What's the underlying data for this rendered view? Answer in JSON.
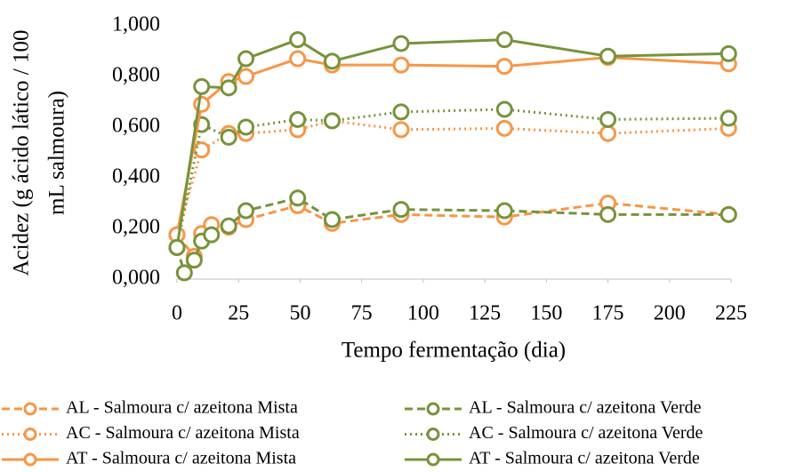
{
  "chart_data": {
    "type": "line",
    "xlabel": "Tempo fermentação (dia)",
    "ylabel": [
      "Acidez  (g ácido lático / 100",
      "mL salmoura)"
    ],
    "xlim": [
      0,
      225
    ],
    "xticks": [
      0,
      25,
      50,
      75,
      100,
      125,
      150,
      175,
      200,
      225
    ],
    "ylim": [
      0,
      1
    ],
    "yticks": [
      {
        "value": 0,
        "label": "0,000"
      },
      {
        "value": 0.2,
        "label": "0,200"
      },
      {
        "value": 0.4,
        "label": "0,400"
      },
      {
        "value": 0.6,
        "label": "0,600"
      },
      {
        "value": 0.8,
        "label": "0,800"
      },
      {
        "value": 1,
        "label": "1,000"
      }
    ],
    "legend": "bottom",
    "series": [
      {
        "name": "AL - Salmoura c/ azeitona Mista",
        "color": "#f79646",
        "line_style": "dashed",
        "x": [
          0,
          7,
          10,
          14,
          21,
          28,
          49,
          63,
          91,
          133,
          175,
          224
        ],
        "values": [
          0.175,
          0.09,
          0.18,
          0.215,
          0.205,
          0.235,
          0.29,
          0.22,
          0.255,
          0.245,
          0.3,
          0.255
        ]
      },
      {
        "name": "AL - Salmoura c/ azeitona Verde",
        "color": "#77933c",
        "line_style": "dashed",
        "x": [
          0,
          3,
          7,
          10,
          14,
          21,
          28,
          49,
          63,
          91,
          133,
          175,
          224
        ],
        "values": [
          0.125,
          0.025,
          0.075,
          0.15,
          0.175,
          0.21,
          0.27,
          0.32,
          0.235,
          0.275,
          0.27,
          0.255,
          0.255
        ]
      },
      {
        "name": "AC - Salmoura c/ azeitona Mista",
        "color": "#f79646",
        "line_style": "dotted",
        "x": [
          0,
          10,
          21,
          28,
          49,
          63,
          91,
          133,
          175,
          224
        ],
        "values": [
          0.175,
          0.51,
          0.575,
          0.575,
          0.59,
          0.625,
          0.59,
          0.595,
          0.575,
          0.595
        ]
      },
      {
        "name": "AC - Salmoura c/ azeitona Verde",
        "color": "#77933c",
        "line_style": "dotted",
        "x": [
          0,
          10,
          21,
          28,
          49,
          63,
          91,
          133,
          175,
          224
        ],
        "values": [
          0.125,
          0.61,
          0.56,
          0.6,
          0.63,
          0.625,
          0.66,
          0.67,
          0.63,
          0.635
        ]
      },
      {
        "name": "AT - Salmoura c/ azeitona Mista",
        "color": "#f79646",
        "line_style": "solid",
        "x": [
          0,
          10,
          21,
          28,
          49,
          63,
          91,
          133,
          175,
          224
        ],
        "values": [
          0.175,
          0.69,
          0.78,
          0.8,
          0.87,
          0.845,
          0.845,
          0.84,
          0.875,
          0.85
        ]
      },
      {
        "name": "AT - Salmoura c/ azeitona Verde",
        "color": "#77933c",
        "line_style": "solid",
        "x": [
          0,
          10,
          21,
          28,
          49,
          63,
          91,
          133,
          175,
          224
        ],
        "values": [
          0.125,
          0.76,
          0.755,
          0.87,
          0.945,
          0.86,
          0.93,
          0.945,
          0.88,
          0.89
        ]
      }
    ]
  }
}
